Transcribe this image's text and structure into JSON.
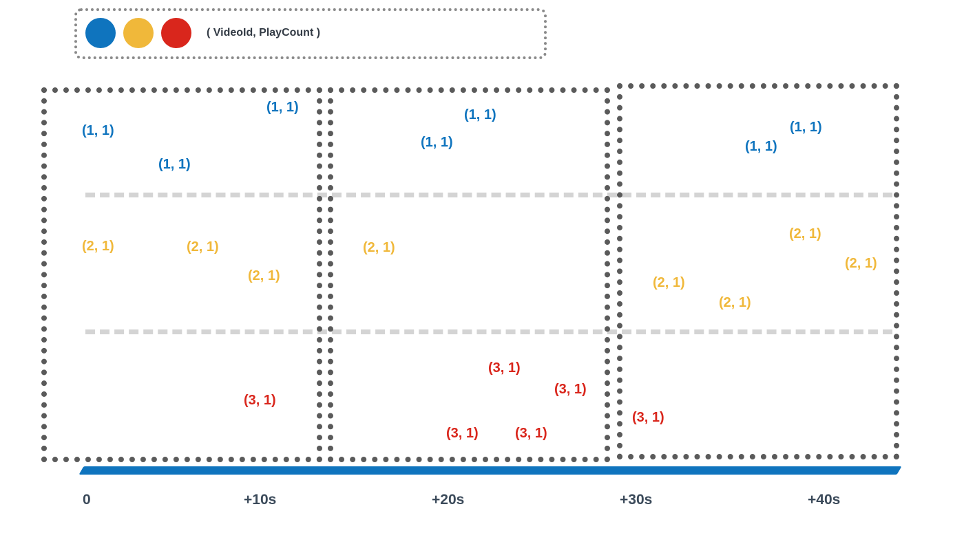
{
  "legend": {
    "label": "( VideoId, PlayCount )",
    "dots": [
      {
        "color": "#0f74be",
        "name": "video-1"
      },
      {
        "color": "#f0b83a",
        "name": "video-2"
      },
      {
        "color": "#d9261c",
        "name": "video-3"
      }
    ]
  },
  "colors": {
    "video1": "#0f74be",
    "video2": "#f0b83a",
    "video3": "#d9261c"
  },
  "events": [
    {
      "video": 1,
      "text": "(1, 1)"
    },
    {
      "video": 1,
      "text": "(1, 1)"
    },
    {
      "video": 1,
      "text": "(1, 1)"
    },
    {
      "video": 1,
      "text": "(1, 1)"
    },
    {
      "video": 1,
      "text": "(1, 1)"
    },
    {
      "video": 1,
      "text": "(1, 1)"
    },
    {
      "video": 1,
      "text": "(1, 1)"
    },
    {
      "video": 2,
      "text": "(2, 1)"
    },
    {
      "video": 2,
      "text": "(2, 1)"
    },
    {
      "video": 2,
      "text": "(2, 1)"
    },
    {
      "video": 2,
      "text": "(2, 1)"
    },
    {
      "video": 2,
      "text": "(2, 1)"
    },
    {
      "video": 2,
      "text": "(2, 1)"
    },
    {
      "video": 2,
      "text": "(2, 1)"
    },
    {
      "video": 2,
      "text": "(2, 1)"
    },
    {
      "video": 3,
      "text": "(3, 1)"
    },
    {
      "video": 3,
      "text": "(3, 1)"
    },
    {
      "video": 3,
      "text": "(3, 1)"
    },
    {
      "video": 3,
      "text": "(3, 1)"
    },
    {
      "video": 3,
      "text": "(3, 1)"
    },
    {
      "video": 3,
      "text": "(3, 1)"
    }
  ],
  "timeline": {
    "ticks": [
      "0",
      "+10s",
      "+20s",
      "+30s",
      "+40s"
    ]
  }
}
